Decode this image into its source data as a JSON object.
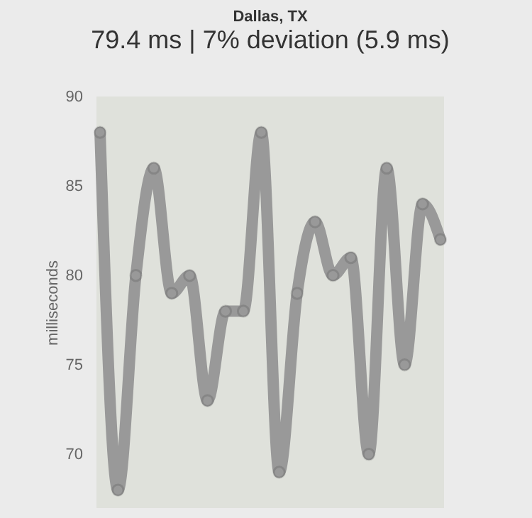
{
  "chart_data": {
    "type": "line",
    "title": "Dallas, TX",
    "subtitle": "79.4 ms | 7% deviation (5.9 ms)",
    "ylabel": "milliseconds",
    "categories": [
      null,
      null,
      null,
      null,
      null,
      null,
      null,
      null,
      null,
      null,
      null,
      null,
      null,
      null,
      null,
      null,
      null,
      null,
      null,
      null
    ],
    "series": [
      {
        "color": "#999999",
        "values": [
          88,
          68,
          80,
          86,
          79,
          80,
          73,
          78,
          78,
          88,
          69,
          79,
          83,
          80,
          81,
          70,
          86,
          75,
          84,
          82
        ]
      }
    ],
    "ylim": [
      67,
      90
    ],
    "yticks": [
      70,
      75,
      80,
      85,
      90
    ],
    "grid": false,
    "legend": false,
    "marker": "circle",
    "line_style": "solid"
  }
}
